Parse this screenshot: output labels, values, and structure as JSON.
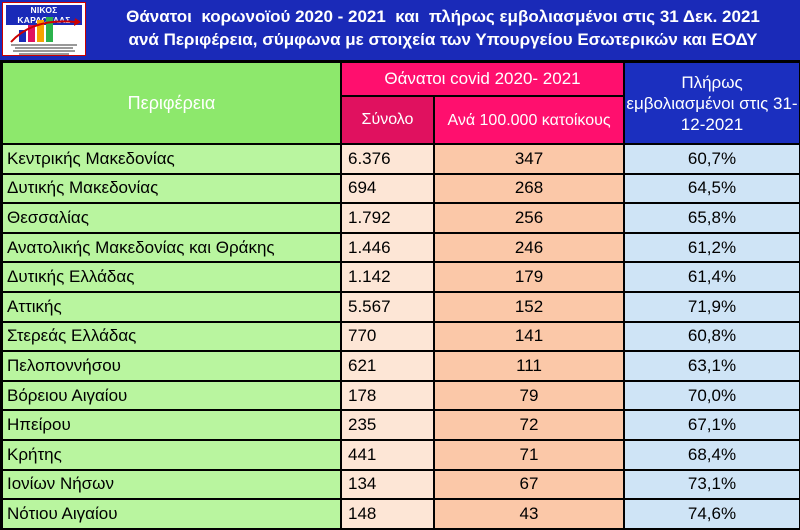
{
  "logo": {
    "name": "ΝΙΚΟΣ ΚΑΡΔΟΥΛΑΣ"
  },
  "title": {
    "line1": "Θάνατοι  κορωνοϊού 2020 - 2021  και  πλήρως εμβολιασμένοι στις 31 Δεκ. 2021",
    "line2": "ανά Περιφέρεια, σύμφωνα με στοιχεία των Υπουργείου Εσωτερικών και ΕΟΔΥ"
  },
  "headers": {
    "region": "Περιφέρεια",
    "covid": "Θάνατοι covid 2020- 2021",
    "total": "Σύνολο",
    "per100k": "Ανά 100.000 κατοίκους",
    "vaccinated": "Πλήρως εμβολιασμένοι στις 31-12-2021"
  },
  "colors": {
    "header_bg": "#1a2ab8",
    "region_col": "#b9f59f",
    "total_col": "#fde6d6",
    "per100k_col": "#fbc8a8",
    "vax_col": "#cfe4f6",
    "covid_header": "#ff0f6e"
  },
  "chart_data": {
    "type": "table",
    "title": "Θάνατοι  κορωνοϊού 2020 - 2021  και  πλήρως εμβολιασμένοι στις 31 Δεκ. 2021",
    "columns": [
      "Περιφέρεια",
      "Σύνολο",
      "Ανά 100.000 κατοίκους",
      "Πλήρως εμβολιασμένοι στις 31-12-2021"
    ],
    "rows": [
      [
        "Κεντρικής Μακεδονίας",
        "6.376",
        "347",
        "60,7%"
      ],
      [
        "Δυτικής Μακεδονίας",
        "694",
        "268",
        "64,5%"
      ],
      [
        "Θεσσαλίας",
        "1.792",
        "256",
        "65,8%"
      ],
      [
        "Ανατολικής Μακεδονίας και Θράκης",
        "1.446",
        "246",
        "61,2%"
      ],
      [
        "Δυτικής Ελλάδας",
        "1.142",
        "179",
        "61,4%"
      ],
      [
        "Αττικής",
        "5.567",
        "152",
        "71,9%"
      ],
      [
        "Στερεάς Ελλάδας",
        "770",
        "141",
        "60,8%"
      ],
      [
        "Πελοποννήσου",
        "621",
        "111",
        "63,1%"
      ],
      [
        "Βόρειου Αιγαίου",
        "178",
        "79",
        "70,0%"
      ],
      [
        "Ηπείρου",
        "235",
        "72",
        "67,1%"
      ],
      [
        "Κρήτης",
        "441",
        "71",
        "68,4%"
      ],
      [
        "Ιονίων Νήσων",
        "134",
        "67",
        "73,1%"
      ],
      [
        "Νότιου Αιγαίου",
        "148",
        "43",
        "74,6%"
      ]
    ]
  }
}
